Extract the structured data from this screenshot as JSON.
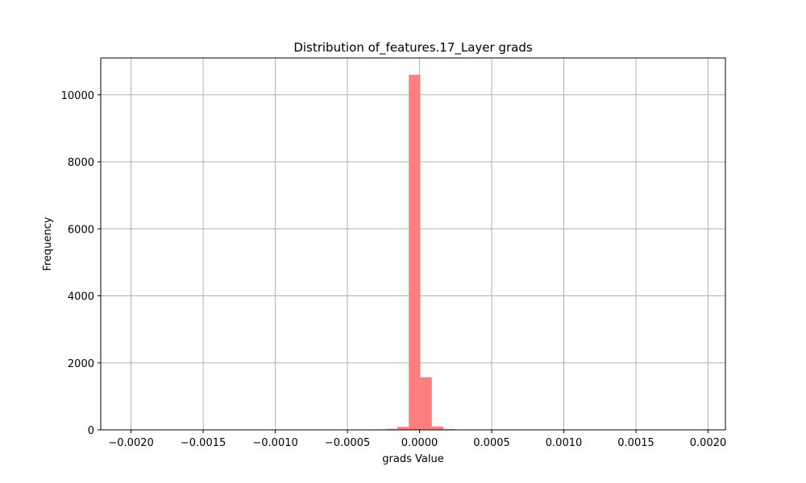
{
  "chart_data": {
    "type": "bar",
    "title": "Distribution of_features.17_Layer grads",
    "xlabel": "grads Value",
    "ylabel": "Frequency",
    "xlim": [
      -0.00221,
      0.00212
    ],
    "ylim": [
      0,
      11100
    ],
    "grid": true,
    "bar_color": "#ff7f7f",
    "xticks": [
      -0.002,
      -0.0015,
      -0.001,
      -0.0005,
      0.0,
      0.0005,
      0.001,
      0.0015,
      0.002
    ],
    "xtick_labels": [
      "−0.0020",
      "−0.0015",
      "−0.0010",
      "−0.0005",
      "0.0000",
      "0.0005",
      "0.0010",
      "0.0015",
      "0.0020"
    ],
    "yticks": [
      0,
      2000,
      4000,
      6000,
      8000,
      10000
    ],
    "ytick_labels": [
      "0",
      "2000",
      "4000",
      "6000",
      "8000",
      "10000"
    ],
    "bin_width": 8e-05,
    "bins": [
      {
        "x": -0.000315,
        "y": 15
      },
      {
        "x": -0.000235,
        "y": 30
      },
      {
        "x": -0.000155,
        "y": 90
      },
      {
        "x": -7.5e-05,
        "y": 10600
      },
      {
        "x": 5e-06,
        "y": 1570
      },
      {
        "x": 8.5e-05,
        "y": 100
      },
      {
        "x": 0.000165,
        "y": 25
      },
      {
        "x": 0.000245,
        "y": 8
      }
    ]
  }
}
